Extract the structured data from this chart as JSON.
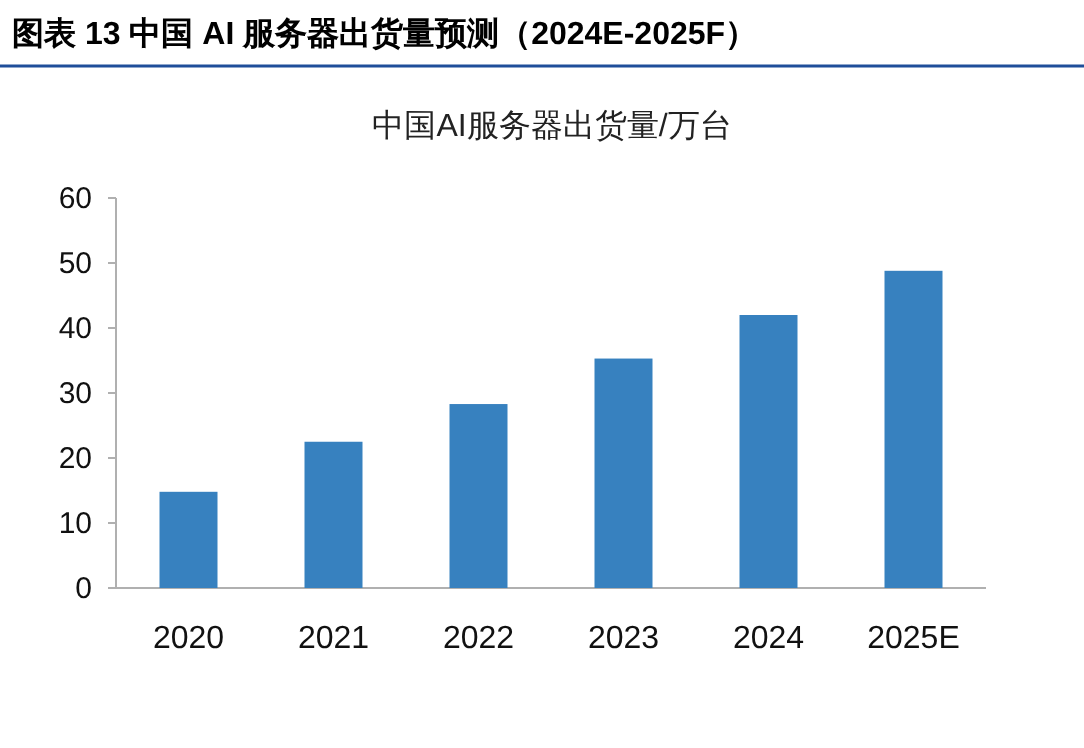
{
  "chart_data": {
    "type": "bar",
    "title": "图表 13 中国 AI 服务器出货量预测（2024E-2025F）",
    "subtitle": "中国AI服务器出货量/万台",
    "categories": [
      "2020",
      "2021",
      "2022",
      "2023",
      "2024",
      "2025E"
    ],
    "values": [
      14.8,
      22.5,
      28.3,
      35.3,
      42.0,
      48.8
    ],
    "color": "#3781bf",
    "ylim": [
      0,
      60
    ],
    "yticks": [
      0,
      10,
      20,
      30,
      40,
      50,
      60
    ],
    "grid": false,
    "legend": false
  }
}
